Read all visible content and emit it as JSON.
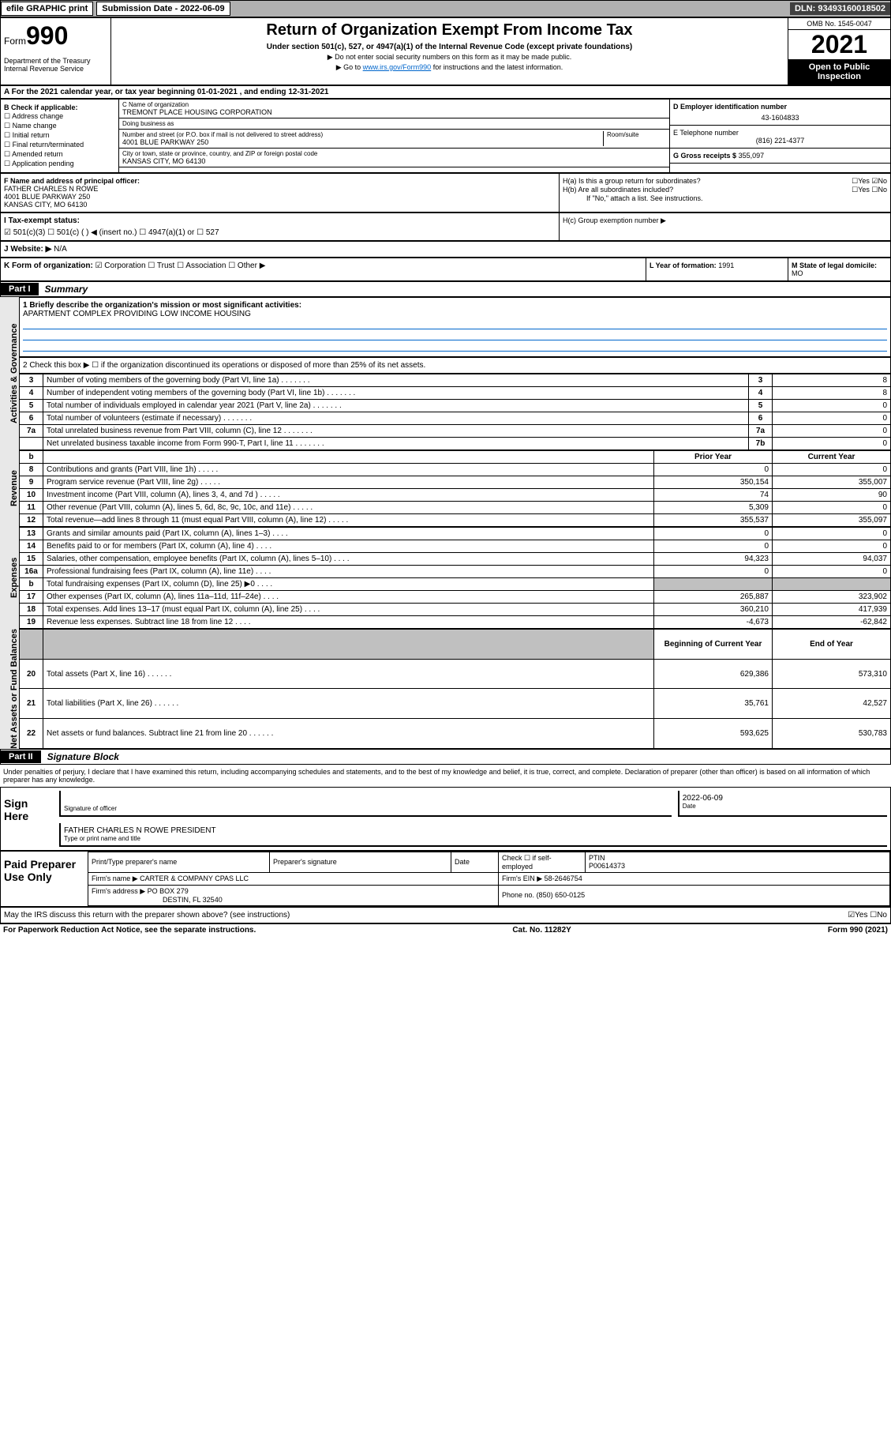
{
  "topbar": {
    "efile": "efile GRAPHIC print",
    "submission": "Submission Date - 2022-06-09",
    "dln": "DLN: 93493160018502"
  },
  "header": {
    "form_prefix": "Form",
    "form_number": "990",
    "dept": "Department of the Treasury Internal Revenue Service",
    "title": "Return of Organization Exempt From Income Tax",
    "subtitle": "Under section 501(c), 527, or 4947(a)(1) of the Internal Revenue Code (except private foundations)",
    "note1": "▶ Do not enter social security numbers on this form as it may be made public.",
    "note2_pre": "▶ Go to ",
    "note2_link": "www.irs.gov/Form990",
    "note2_post": " for instructions and the latest information.",
    "omb": "OMB No. 1545-0047",
    "year": "2021",
    "open_public": "Open to Public Inspection"
  },
  "section_a": "A For the 2021 calendar year, or tax year beginning 01-01-2021   , and ending 12-31-2021",
  "b": {
    "title": "B Check if applicable:",
    "opts": [
      "☐ Address change",
      "☐ Name change",
      "☐ Initial return",
      "☐ Final return/terminated",
      "☐ Amended return",
      "☐ Application pending"
    ]
  },
  "c": {
    "name_label": "C Name of organization",
    "name": "TREMONT PLACE HOUSING CORPORATION",
    "dba_label": "Doing business as",
    "dba": "",
    "street_label": "Number and street (or P.O. box if mail is not delivered to street address)",
    "room_label": "Room/suite",
    "street": "4001 BLUE PARKWAY 250",
    "city_label": "City or town, state or province, country, and ZIP or foreign postal code",
    "city": "KANSAS CITY, MO  64130"
  },
  "d": {
    "label": "D Employer identification number",
    "val": "43-1604833"
  },
  "e": {
    "label": "E Telephone number",
    "val": "(816) 221-4377"
  },
  "g": {
    "label": "G Gross receipts $",
    "val": "355,097"
  },
  "f": {
    "label": "F  Name and address of principal officer:",
    "name": "FATHER CHARLES N ROWE",
    "addr1": "4001 BLUE PARKWAY 250",
    "addr2": "KANSAS CITY, MO  64130"
  },
  "h": {
    "a": "H(a)  Is this a group return for subordinates?",
    "a_ans": "☐Yes ☑No",
    "b": "H(b)  Are all subordinates included?",
    "b_ans": "☐Yes ☐No",
    "b_note": "If \"No,\" attach a list. See instructions.",
    "c": "H(c)  Group exemption number ▶"
  },
  "i": {
    "label": "I   Tax-exempt status:",
    "opts": "☑ 501(c)(3)   ☐  501(c) (  ) ◀ (insert no.)    ☐ 4947(a)(1) or  ☐ 527"
  },
  "j": {
    "label": "J   Website: ▶",
    "val": "N/A"
  },
  "k": {
    "label": "K Form of organization:",
    "opts": "☑ Corporation ☐ Trust ☐ Association ☐ Other ▶"
  },
  "l": {
    "label": "L Year of formation:",
    "val": "1991"
  },
  "m": {
    "label": "M State of legal domicile:",
    "val": "MO"
  },
  "part1": {
    "badge": "Part I",
    "title": "Summary",
    "line1_label": "1  Briefly describe the organization's mission or most significant activities:",
    "line1_val": "APARTMENT COMPLEX PROVIDING LOW INCOME HOUSING",
    "line2": "2   Check this box ▶ ☐  if the organization discontinued its operations or disposed of more than 25% of its net assets.",
    "rows_gov": [
      {
        "n": "3",
        "t": "Number of voting members of the governing body (Part VI, line 1a)",
        "k": "3",
        "v": "8"
      },
      {
        "n": "4",
        "t": "Number of independent voting members of the governing body (Part VI, line 1b)",
        "k": "4",
        "v": "8"
      },
      {
        "n": "5",
        "t": "Total number of individuals employed in calendar year 2021 (Part V, line 2a)",
        "k": "5",
        "v": "0"
      },
      {
        "n": "6",
        "t": "Total number of volunteers (estimate if necessary)",
        "k": "6",
        "v": "0"
      },
      {
        "n": "7a",
        "t": "Total unrelated business revenue from Part VIII, column (C), line 12",
        "k": "7a",
        "v": "0"
      },
      {
        "n": "",
        "t": "Net unrelated business taxable income from Form 990-T, Part I, line 11",
        "k": "7b",
        "v": "0"
      }
    ],
    "col_headers": {
      "b": "b",
      "prior": "Prior Year",
      "current": "Current Year"
    },
    "rows_rev": [
      {
        "n": "8",
        "t": "Contributions and grants (Part VIII, line 1h)",
        "p": "0",
        "c": "0"
      },
      {
        "n": "9",
        "t": "Program service revenue (Part VIII, line 2g)",
        "p": "350,154",
        "c": "355,007"
      },
      {
        "n": "10",
        "t": "Investment income (Part VIII, column (A), lines 3, 4, and 7d )",
        "p": "74",
        "c": "90"
      },
      {
        "n": "11",
        "t": "Other revenue (Part VIII, column (A), lines 5, 6d, 8c, 9c, 10c, and 11e)",
        "p": "5,309",
        "c": "0"
      },
      {
        "n": "12",
        "t": "Total revenue—add lines 8 through 11 (must equal Part VIII, column (A), line 12)",
        "p": "355,537",
        "c": "355,097"
      }
    ],
    "rows_exp": [
      {
        "n": "13",
        "t": "Grants and similar amounts paid (Part IX, column (A), lines 1–3)",
        "p": "0",
        "c": "0"
      },
      {
        "n": "14",
        "t": "Benefits paid to or for members (Part IX, column (A), line 4)",
        "p": "0",
        "c": "0"
      },
      {
        "n": "15",
        "t": "Salaries, other compensation, employee benefits (Part IX, column (A), lines 5–10)",
        "p": "94,323",
        "c": "94,037"
      },
      {
        "n": "16a",
        "t": "Professional fundraising fees (Part IX, column (A), line 11e)",
        "p": "0",
        "c": "0"
      },
      {
        "n": "b",
        "t": "Total fundraising expenses (Part IX, column (D), line 25) ▶0",
        "p": "",
        "c": "",
        "grey": true
      },
      {
        "n": "17",
        "t": "Other expenses (Part IX, column (A), lines 11a–11d, 11f–24e)",
        "p": "265,887",
        "c": "323,902"
      },
      {
        "n": "18",
        "t": "Total expenses. Add lines 13–17 (must equal Part IX, column (A), line 25)",
        "p": "360,210",
        "c": "417,939"
      },
      {
        "n": "19",
        "t": "Revenue less expenses. Subtract line 18 from line 12",
        "p": "-4,673",
        "c": "-62,842"
      }
    ],
    "col_headers2": {
      "begin": "Beginning of Current Year",
      "end": "End of Year"
    },
    "rows_net": [
      {
        "n": "20",
        "t": "Total assets (Part X, line 16)",
        "p": "629,386",
        "c": "573,310"
      },
      {
        "n": "21",
        "t": "Total liabilities (Part X, line 26)",
        "p": "35,761",
        "c": "42,527"
      },
      {
        "n": "22",
        "t": "Net assets or fund balances. Subtract line 21 from line 20",
        "p": "593,625",
        "c": "530,783"
      }
    ],
    "side_labels": {
      "gov": "Activities & Governance",
      "rev": "Revenue",
      "exp": "Expenses",
      "net": "Net Assets or Fund Balances"
    }
  },
  "part2": {
    "badge": "Part II",
    "title": "Signature Block",
    "declaration": "Under penalties of perjury, I declare that I have examined this return, including accompanying schedules and statements, and to the best of my knowledge and belief, it is true, correct, and complete. Declaration of preparer (other than officer) is based on all information of which preparer has any knowledge.",
    "sign_here": "Sign Here",
    "sig_officer": "Signature of officer",
    "sig_date": "2022-06-09",
    "date_label": "Date",
    "officer_name": "FATHER CHARLES N ROWE  PRESIDENT",
    "officer_label": "Type or print name and title",
    "paid_prep": "Paid Preparer Use Only",
    "prep_cols": [
      "Print/Type preparer's name",
      "Preparer's signature",
      "Date"
    ],
    "prep_check": "Check ☐ if self-employed",
    "ptin_label": "PTIN",
    "ptin": "P00614373",
    "firm_name_label": "Firm's name    ▶",
    "firm_name": "CARTER & COMPANY CPAS LLC",
    "firm_ein_label": "Firm's EIN ▶",
    "firm_ein": "58-2646754",
    "firm_addr_label": "Firm's address ▶",
    "firm_addr1": "PO BOX 279",
    "firm_addr2": "DESTIN, FL  32540",
    "phone_label": "Phone no.",
    "phone": "(850) 650-0125",
    "discuss": "May the IRS discuss this return with the preparer shown above? (see instructions)",
    "discuss_ans": "☑Yes  ☐No"
  },
  "footer": {
    "left": "For Paperwork Reduction Act Notice, see the separate instructions.",
    "mid": "Cat. No. 11282Y",
    "right": "Form 990 (2021)"
  }
}
